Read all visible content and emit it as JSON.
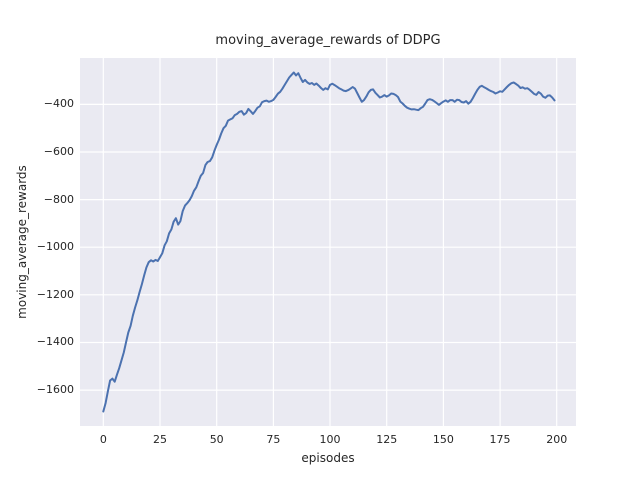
{
  "figure": {
    "background": "#ffffff",
    "plot_background": "#eaeaf2",
    "grid_color": "#ffffff",
    "text_color": "#262626"
  },
  "chart_data": {
    "type": "line",
    "title": "moving_average_rewards of DDPG",
    "xlabel": "episodes",
    "ylabel": "moving_average_rewards",
    "line_color": "#4c72b0",
    "line_width": 2,
    "grid": true,
    "legend_position": "none",
    "x_ticks": [
      0,
      25,
      50,
      75,
      100,
      125,
      150,
      175,
      200
    ],
    "y_ticks": [
      -400,
      -600,
      -800,
      -1000,
      -1200,
      -1400,
      -1600
    ],
    "xlim": [
      -10.3,
      208.5
    ],
    "ylim": [
      -1751,
      -205
    ],
    "series": [
      {
        "name": "moving_average_rewards",
        "x_start": 0,
        "x_step": 1,
        "values": [
          -1690,
          -1655,
          -1605,
          -1560,
          -1552,
          -1565,
          -1535,
          -1508,
          -1475,
          -1442,
          -1400,
          -1358,
          -1330,
          -1288,
          -1253,
          -1222,
          -1188,
          -1155,
          -1118,
          -1085,
          -1063,
          -1055,
          -1060,
          -1053,
          -1058,
          -1042,
          -1025,
          -992,
          -975,
          -942,
          -925,
          -893,
          -878,
          -905,
          -890,
          -848,
          -825,
          -815,
          -803,
          -785,
          -763,
          -748,
          -722,
          -700,
          -688,
          -655,
          -642,
          -638,
          -622,
          -595,
          -570,
          -548,
          -522,
          -500,
          -490,
          -468,
          -463,
          -458,
          -445,
          -440,
          -431,
          -428,
          -443,
          -436,
          -419,
          -429,
          -440,
          -428,
          -414,
          -408,
          -391,
          -386,
          -384,
          -389,
          -386,
          -381,
          -369,
          -355,
          -347,
          -334,
          -318,
          -302,
          -287,
          -276,
          -266,
          -278,
          -269,
          -289,
          -306,
          -297,
          -308,
          -314,
          -310,
          -318,
          -312,
          -321,
          -331,
          -339,
          -332,
          -337,
          -318,
          -313,
          -319,
          -325,
          -332,
          -337,
          -342,
          -344,
          -340,
          -334,
          -327,
          -334,
          -352,
          -371,
          -389,
          -382,
          -367,
          -349,
          -339,
          -337,
          -351,
          -361,
          -371,
          -367,
          -361,
          -367,
          -362,
          -354,
          -356,
          -361,
          -369,
          -388,
          -396,
          -406,
          -414,
          -418,
          -421,
          -420,
          -422,
          -424,
          -416,
          -410,
          -396,
          -382,
          -378,
          -381,
          -387,
          -394,
          -402,
          -395,
          -388,
          -383,
          -389,
          -382,
          -382,
          -389,
          -380,
          -382,
          -390,
          -392,
          -386,
          -397,
          -389,
          -373,
          -356,
          -339,
          -326,
          -322,
          -328,
          -333,
          -339,
          -344,
          -348,
          -354,
          -350,
          -345,
          -347,
          -337,
          -327,
          -318,
          -311,
          -308,
          -314,
          -321,
          -331,
          -328,
          -334,
          -332,
          -338,
          -347,
          -356,
          -360,
          -348,
          -355,
          -367,
          -372,
          -363,
          -362,
          -371,
          -383
        ]
      }
    ]
  }
}
